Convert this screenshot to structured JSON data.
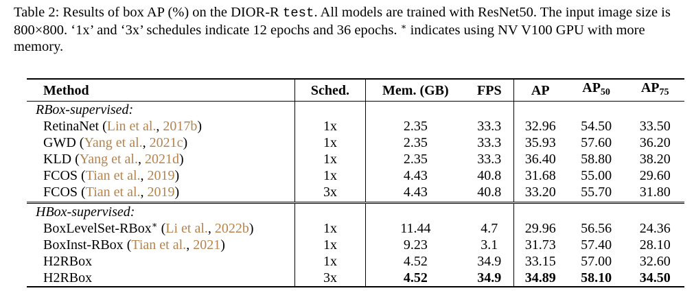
{
  "caption": {
    "prefix": "Table 2: Results of box AP (%) on the DIOR-R ",
    "code": "test",
    "suffix": ". All models are trained with ResNet50. The input image size is 800×800. ‘1x’ and ‘3x’ schedules indicate 12 epochs and 36 epochs. ",
    "star": "∗",
    "end": " indicates using NV V100 GPU with more memory."
  },
  "headers": {
    "method": "Method",
    "sched": "Sched.",
    "mem": "Mem. (GB)",
    "fps": "FPS",
    "ap": "AP",
    "ap50_base": "AP",
    "ap50_sub": "50",
    "ap75_base": "AP",
    "ap75_sub": "75"
  },
  "groups": [
    {
      "label": "RBox-supervised:",
      "rows": [
        {
          "method": "RetinaNet",
          "cite_a": "Lin et al.",
          "cite_b": "2017b",
          "sched": "1x",
          "mem": "2.35",
          "fps": "33.3",
          "ap": "32.96",
          "ap50": "54.50",
          "ap75": "33.50"
        },
        {
          "method": "GWD",
          "cite_a": "Yang et al.",
          "cite_b": "2021c",
          "sched": "1x",
          "mem": "2.35",
          "fps": "33.3",
          "ap": "35.93",
          "ap50": "57.60",
          "ap75": "36.20"
        },
        {
          "method": "KLD",
          "cite_a": "Yang et al.",
          "cite_b": "2021d",
          "sched": "1x",
          "mem": "2.35",
          "fps": "33.3",
          "ap": "36.40",
          "ap50": "58.80",
          "ap75": "38.20"
        },
        {
          "method": "FCOS",
          "cite_a": "Tian et al.",
          "cite_b": "2019",
          "sched": "1x",
          "mem": "4.43",
          "fps": "40.8",
          "ap": "31.68",
          "ap50": "55.00",
          "ap75": "29.60"
        },
        {
          "method": "FCOS",
          "cite_a": "Tian et al.",
          "cite_b": "2019",
          "sched": "3x",
          "mem": "4.43",
          "fps": "40.8",
          "ap": "33.20",
          "ap50": "55.70",
          "ap75": "31.80"
        }
      ]
    },
    {
      "label": "HBox-supervised:",
      "rows": [
        {
          "method": "BoxLevelSet-RBox",
          "star": "∗",
          "cite_a": "Li et al.",
          "cite_b": "2022b",
          "sched": "1x",
          "mem": "11.44",
          "fps": "4.7",
          "ap": "29.96",
          "ap50": "56.56",
          "ap75": "24.36"
        },
        {
          "method": "BoxInst-RBox",
          "cite_a": "Tian et al.",
          "cite_b": "2021",
          "sched": "1x",
          "mem": "9.23",
          "fps": "3.1",
          "ap": "31.73",
          "ap50": "57.40",
          "ap75": "28.10"
        },
        {
          "method": "H2RBox",
          "sched": "1x",
          "mem": "4.52",
          "fps": "34.9",
          "ap": "33.15",
          "ap50": "57.00",
          "ap75": "32.60"
        },
        {
          "method": "H2RBox",
          "sched": "3x",
          "mem": "4.52",
          "fps": "34.9",
          "ap": "34.89",
          "ap50": "58.10",
          "ap75": "34.50",
          "bold": true
        }
      ]
    }
  ]
}
